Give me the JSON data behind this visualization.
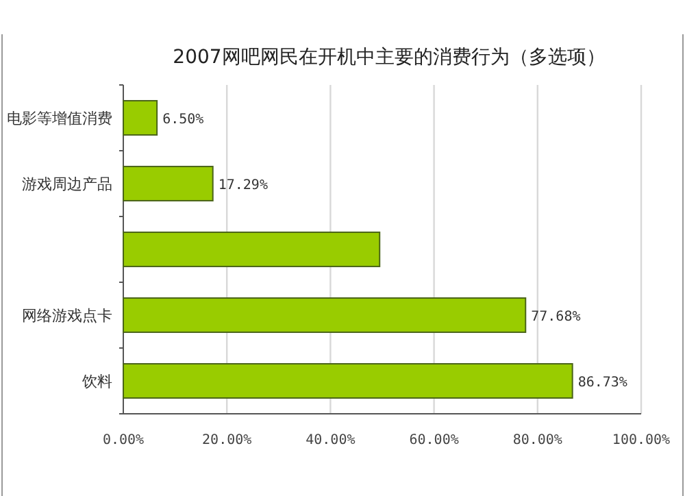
{
  "chart_data": {
    "type": "bar",
    "orientation": "horizontal",
    "title": "2007网吧网民在开机中主要的消费行为（多选项）",
    "categories": [
      "电影等增值消费",
      "游戏周边产品",
      null,
      "网络游戏点卡",
      "饮料"
    ],
    "values": [
      6.5,
      17.29,
      49.5,
      77.68,
      86.73
    ],
    "value_labels": [
      "6.50%",
      "17.29%",
      null,
      "77.68%",
      "86.73%"
    ],
    "color": "#99cc00",
    "xlim": [
      0,
      100
    ],
    "xticks": [
      {
        "value": 0,
        "label": "0.00%"
      },
      {
        "value": 20,
        "label": "20.00%"
      },
      {
        "value": 40,
        "label": "40.00%"
      },
      {
        "value": 60,
        "label": "60.00%"
      },
      {
        "value": 80,
        "label": "80.00%"
      },
      {
        "value": 100,
        "label": "100.00%"
      }
    ],
    "grid": "x"
  }
}
